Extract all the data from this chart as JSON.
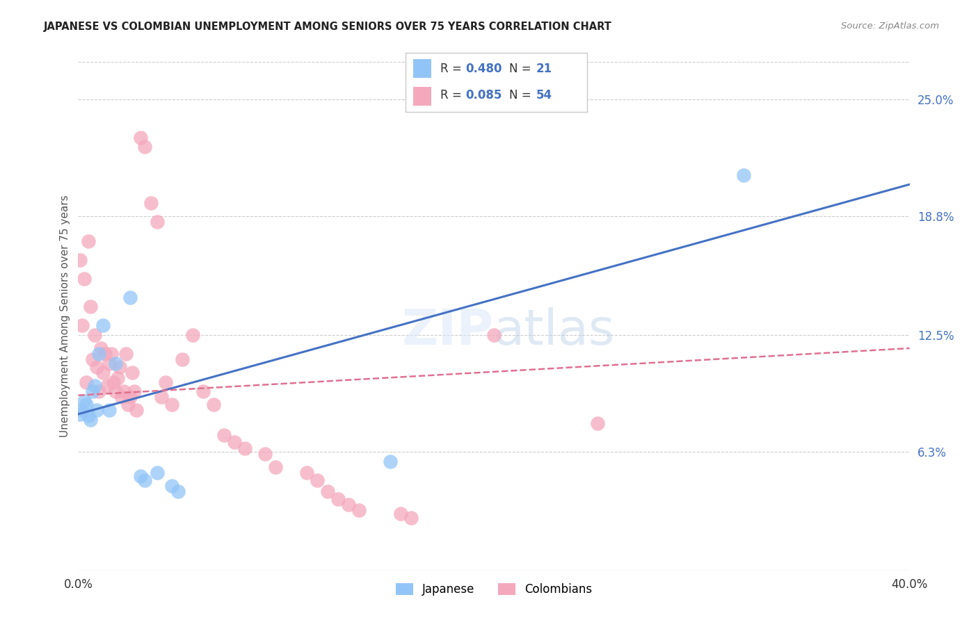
{
  "title": "JAPANESE VS COLOMBIAN UNEMPLOYMENT AMONG SENIORS OVER 75 YEARS CORRELATION CHART",
  "source": "Source: ZipAtlas.com",
  "ylabel": "Unemployment Among Seniors over 75 years",
  "yticks": [
    "25.0%",
    "18.8%",
    "12.5%",
    "6.3%"
  ],
  "ytick_vals": [
    0.25,
    0.188,
    0.125,
    0.063
  ],
  "xlim": [
    0.0,
    0.4
  ],
  "ylim": [
    0.0,
    0.27
  ],
  "japanese_color": "#92C5F7",
  "colombian_color": "#F4A8BC",
  "jp_line_color": "#4472C4",
  "co_line_color": "#E07090",
  "background_color": "#ffffff",
  "japanese_R": 0.48,
  "japanese_N": 21,
  "colombian_R": 0.085,
  "colombian_N": 54,
  "jp_line": [
    0.0,
    0.083,
    0.4,
    0.205
  ],
  "co_line": [
    0.0,
    0.093,
    0.4,
    0.118
  ],
  "japanese_points": [
    [
      0.001,
      0.083
    ],
    [
      0.002,
      0.085
    ],
    [
      0.003,
      0.09
    ],
    [
      0.004,
      0.088
    ],
    [
      0.005,
      0.082
    ],
    [
      0.006,
      0.08
    ],
    [
      0.007,
      0.095
    ],
    [
      0.008,
      0.098
    ],
    [
      0.009,
      0.085
    ],
    [
      0.01,
      0.115
    ],
    [
      0.012,
      0.13
    ],
    [
      0.015,
      0.085
    ],
    [
      0.018,
      0.11
    ],
    [
      0.025,
      0.145
    ],
    [
      0.03,
      0.05
    ],
    [
      0.032,
      0.048
    ],
    [
      0.038,
      0.052
    ],
    [
      0.045,
      0.045
    ],
    [
      0.048,
      0.042
    ],
    [
      0.15,
      0.058
    ],
    [
      0.32,
      0.21
    ]
  ],
  "colombian_points": [
    [
      0.001,
      0.165
    ],
    [
      0.002,
      0.13
    ],
    [
      0.003,
      0.155
    ],
    [
      0.004,
      0.1
    ],
    [
      0.005,
      0.175
    ],
    [
      0.006,
      0.14
    ],
    [
      0.007,
      0.112
    ],
    [
      0.008,
      0.125
    ],
    [
      0.009,
      0.108
    ],
    [
      0.01,
      0.095
    ],
    [
      0.011,
      0.118
    ],
    [
      0.012,
      0.105
    ],
    [
      0.013,
      0.115
    ],
    [
      0.014,
      0.098
    ],
    [
      0.015,
      0.11
    ],
    [
      0.016,
      0.115
    ],
    [
      0.017,
      0.1
    ],
    [
      0.018,
      0.095
    ],
    [
      0.019,
      0.102
    ],
    [
      0.02,
      0.108
    ],
    [
      0.021,
      0.092
    ],
    [
      0.022,
      0.095
    ],
    [
      0.023,
      0.115
    ],
    [
      0.024,
      0.088
    ],
    [
      0.025,
      0.092
    ],
    [
      0.026,
      0.105
    ],
    [
      0.027,
      0.095
    ],
    [
      0.028,
      0.085
    ],
    [
      0.03,
      0.23
    ],
    [
      0.032,
      0.225
    ],
    [
      0.035,
      0.195
    ],
    [
      0.038,
      0.185
    ],
    [
      0.04,
      0.092
    ],
    [
      0.042,
      0.1
    ],
    [
      0.045,
      0.088
    ],
    [
      0.05,
      0.112
    ],
    [
      0.055,
      0.125
    ],
    [
      0.06,
      0.095
    ],
    [
      0.065,
      0.088
    ],
    [
      0.07,
      0.072
    ],
    [
      0.075,
      0.068
    ],
    [
      0.08,
      0.065
    ],
    [
      0.09,
      0.062
    ],
    [
      0.095,
      0.055
    ],
    [
      0.11,
      0.052
    ],
    [
      0.115,
      0.048
    ],
    [
      0.12,
      0.042
    ],
    [
      0.125,
      0.038
    ],
    [
      0.13,
      0.035
    ],
    [
      0.135,
      0.032
    ],
    [
      0.155,
      0.03
    ],
    [
      0.16,
      0.028
    ],
    [
      0.2,
      0.125
    ],
    [
      0.25,
      0.078
    ]
  ]
}
